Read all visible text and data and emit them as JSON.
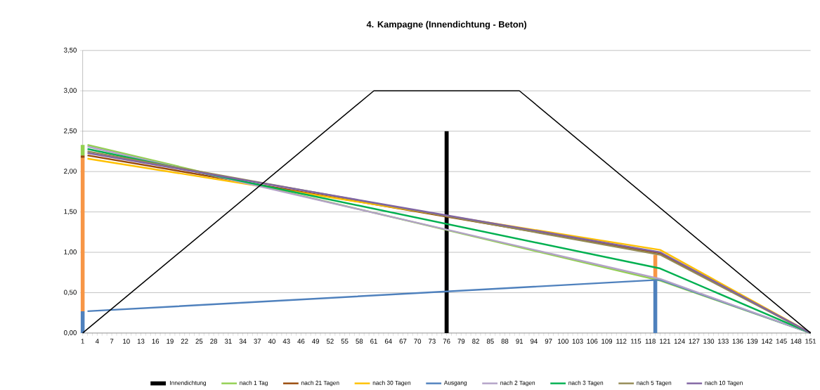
{
  "chart_data": {
    "type": "line",
    "title": "4. Kampagne (Innendichtung - Beton)",
    "stacked": true,
    "grid": "y",
    "legend": "bottom",
    "xlim": [
      1,
      151
    ],
    "xticks": [
      1,
      4,
      7,
      10,
      13,
      16,
      19,
      22,
      25,
      28,
      31,
      34,
      37,
      40,
      43,
      46,
      49,
      52,
      55,
      58,
      61,
      64,
      67,
      70,
      73,
      76,
      79,
      82,
      85,
      88,
      91,
      94,
      97,
      100,
      103,
      106,
      109,
      112,
      115,
      118,
      121,
      124,
      127,
      130,
      133,
      136,
      139,
      142,
      145,
      148,
      151
    ],
    "ylim": [
      0,
      3.5
    ],
    "yticks": [
      {
        "value": 0,
        "label": "0,00"
      },
      {
        "value": 0.5,
        "label": "0,50"
      },
      {
        "value": 1,
        "label": "1,00"
      },
      {
        "value": 1.5,
        "label": "1,50"
      },
      {
        "value": 2,
        "label": "2,00"
      },
      {
        "value": 2.5,
        "label": "2,50"
      },
      {
        "value": 3,
        "label": "3,00"
      },
      {
        "value": 3.5,
        "label": "3,50"
      }
    ],
    "series": [
      {
        "name": "Innendichtung",
        "color": "#000000",
        "x": [
          76,
          76
        ],
        "values": [
          0,
          2.5
        ]
      },
      {
        "name": "nach 1 Tag",
        "color": "#92d050",
        "x": [
          2,
          120,
          151
        ],
        "values": [
          2.33,
          0.65,
          0
        ]
      },
      {
        "name": "nach 21 Tagen",
        "color": "#984807",
        "x": [
          2,
          120,
          151
        ],
        "values": [
          2.2,
          0.99,
          0
        ]
      },
      {
        "name": "nach 30 Tagen",
        "color": "#ffc000",
        "x": [
          2,
          120,
          151
        ],
        "values": [
          2.16,
          1.03,
          0
        ]
      },
      {
        "name": "Ausgang",
        "color": "#4f81bd",
        "x": [
          2,
          120,
          151
        ],
        "values": [
          0.27,
          0.66,
          0
        ]
      },
      {
        "name": "nach 2 Tagen",
        "color": "#b3a2c7",
        "x": [
          2,
          120,
          151
        ],
        "values": [
          2.31,
          0.67,
          0
        ]
      },
      {
        "name": "nach 3 Tagen",
        "color": "#00b050",
        "x": [
          2,
          120,
          151
        ],
        "values": [
          2.28,
          0.8,
          0
        ]
      },
      {
        "name": "nach 5 Tagen",
        "color": "#948a54",
        "x": [
          2,
          120,
          151
        ],
        "values": [
          2.25,
          0.97,
          0
        ]
      },
      {
        "name": "nach 10 Tagen",
        "color": "#8064a2",
        "x": [
          2,
          120,
          151
        ],
        "values": [
          2.23,
          1.0,
          0
        ]
      },
      {
        "color": "#000000",
        "x": [
          1,
          61,
          91,
          151
        ],
        "values": [
          0,
          3,
          3,
          0
        ]
      },
      {
        "type": "bar",
        "color": "#4f81bd",
        "x": [
          1,
          119
        ],
        "values": [
          0.27,
          0.66
        ]
      },
      {
        "type": "bar",
        "color": "#f79646",
        "x": [
          1,
          119
        ],
        "values": [
          1.9,
          0.31
        ]
      },
      {
        "type": "bar",
        "color": "#984807",
        "x": [
          1
        ],
        "values": [
          0.03
        ]
      },
      {
        "type": "bar",
        "color": "#92d050",
        "x": [
          1
        ],
        "values": [
          0.13
        ]
      }
    ]
  }
}
